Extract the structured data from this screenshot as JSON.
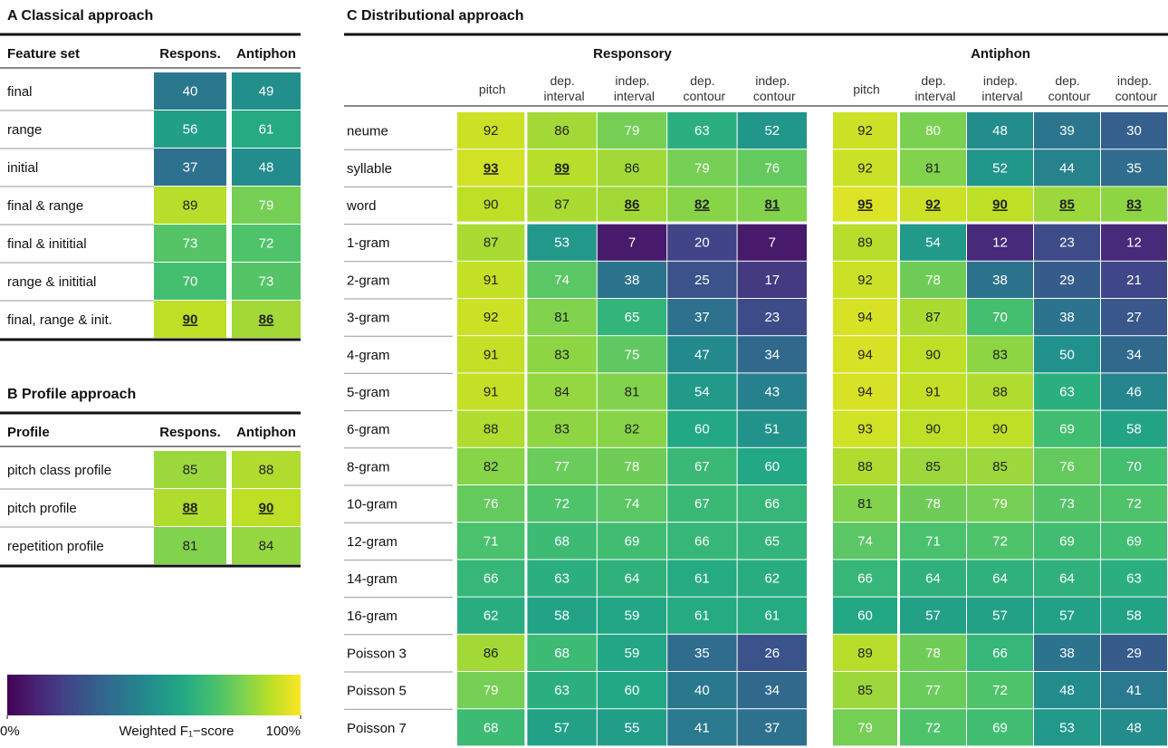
{
  "panel_a": {
    "title": "A Classical approach",
    "columns": [
      "Feature set",
      "Respons.",
      "Antiphon"
    ],
    "rows": [
      {
        "label": "final",
        "values": [
          40,
          49
        ]
      },
      {
        "label": "range",
        "values": [
          56,
          61
        ]
      },
      {
        "label": "initial",
        "values": [
          37,
          48
        ]
      },
      {
        "label": "final & range",
        "values": [
          89,
          79
        ]
      },
      {
        "label": "final & inititial",
        "values": [
          73,
          72
        ]
      },
      {
        "label": "range & inititial",
        "values": [
          70,
          73
        ]
      },
      {
        "label": "final, range & init.",
        "values": [
          90,
          86
        ]
      }
    ],
    "best": [
      [
        6,
        0
      ],
      [
        6,
        1
      ]
    ]
  },
  "panel_b": {
    "title": "B Profile approach",
    "columns": [
      "Profile",
      "Respons.",
      "Antiphon"
    ],
    "rows": [
      {
        "label": "pitch class profile",
        "values": [
          85,
          88
        ]
      },
      {
        "label": "pitch profile",
        "values": [
          88,
          90
        ]
      },
      {
        "label": "repetition profile",
        "values": [
          81,
          84
        ]
      }
    ],
    "best": [
      [
        1,
        0
      ],
      [
        1,
        1
      ]
    ]
  },
  "panel_c": {
    "title": "C Distributional approach",
    "groups": [
      "Responsory",
      "Antiphon"
    ],
    "columns": [
      "pitch",
      "dep. interval",
      "indep. interval",
      "dep. contour",
      "indep. contour"
    ],
    "rows": [
      {
        "label": "neume",
        "values": [
          92,
          86,
          79,
          63,
          52,
          92,
          80,
          48,
          39,
          30
        ]
      },
      {
        "label": "syllable",
        "values": [
          93,
          89,
          86,
          79,
          76,
          92,
          81,
          52,
          44,
          35
        ]
      },
      {
        "label": "word",
        "values": [
          90,
          87,
          86,
          82,
          81,
          95,
          92,
          90,
          85,
          83
        ]
      },
      {
        "label": "1-gram",
        "values": [
          87,
          53,
          7,
          20,
          7,
          89,
          54,
          12,
          23,
          12
        ]
      },
      {
        "label": "2-gram",
        "values": [
          91,
          74,
          38,
          25,
          17,
          92,
          78,
          38,
          29,
          21
        ]
      },
      {
        "label": "3-gram",
        "values": [
          92,
          81,
          65,
          37,
          23,
          94,
          87,
          70,
          38,
          27
        ]
      },
      {
        "label": "4-gram",
        "values": [
          91,
          83,
          75,
          47,
          34,
          94,
          90,
          83,
          50,
          34
        ]
      },
      {
        "label": "5-gram",
        "values": [
          91,
          84,
          81,
          54,
          43,
          94,
          91,
          88,
          63,
          46
        ]
      },
      {
        "label": "6-gram",
        "values": [
          88,
          83,
          82,
          60,
          51,
          93,
          90,
          90,
          69,
          58
        ]
      },
      {
        "label": "8-gram",
        "values": [
          82,
          77,
          78,
          67,
          60,
          88,
          85,
          85,
          76,
          70
        ]
      },
      {
        "label": "10-gram",
        "values": [
          76,
          72,
          74,
          67,
          66,
          81,
          78,
          79,
          73,
          72
        ]
      },
      {
        "label": "12-gram",
        "values": [
          71,
          68,
          69,
          66,
          65,
          74,
          71,
          72,
          69,
          69
        ]
      },
      {
        "label": "14-gram",
        "values": [
          66,
          63,
          64,
          61,
          62,
          66,
          64,
          64,
          64,
          63
        ]
      },
      {
        "label": "16-gram",
        "values": [
          62,
          58,
          59,
          61,
          61,
          60,
          57,
          57,
          57,
          58
        ]
      },
      {
        "label": "Poisson 3",
        "values": [
          86,
          68,
          59,
          35,
          26,
          89,
          78,
          66,
          38,
          29
        ]
      },
      {
        "label": "Poisson 5",
        "values": [
          79,
          63,
          60,
          40,
          34,
          85,
          77,
          72,
          48,
          41
        ]
      },
      {
        "label": "Poisson 7",
        "values": [
          68,
          57,
          55,
          41,
          37,
          79,
          72,
          69,
          53,
          48
        ]
      }
    ],
    "best": [
      [
        1,
        0
      ],
      [
        1,
        1
      ],
      [
        2,
        2
      ],
      [
        2,
        3
      ],
      [
        2,
        4
      ],
      [
        2,
        5
      ],
      [
        2,
        6
      ],
      [
        2,
        7
      ],
      [
        2,
        8
      ],
      [
        2,
        9
      ]
    ]
  },
  "colorbar": {
    "label": "Weighted F₁−score",
    "lim": [
      0,
      100
    ],
    "ticks": [
      {
        "value": 0,
        "label": "0%"
      },
      {
        "value": 100,
        "label": "100%"
      }
    ]
  }
}
